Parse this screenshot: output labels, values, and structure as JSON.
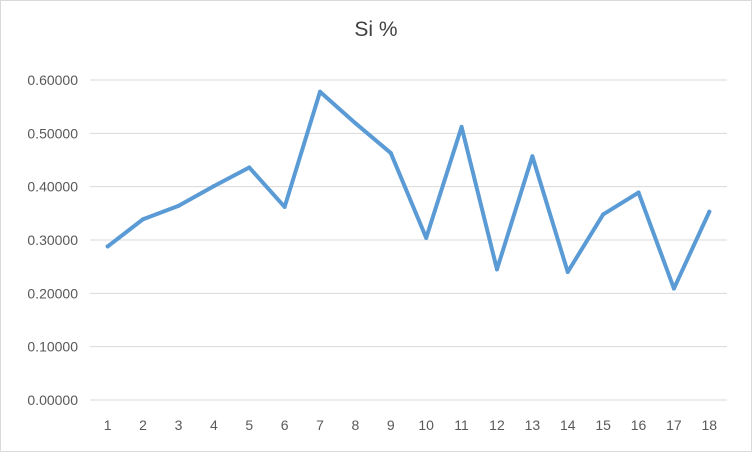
{
  "chart_data": {
    "type": "line",
    "title": "Si %",
    "xlabel": "",
    "ylabel": "",
    "categories": [
      "1",
      "2",
      "3",
      "4",
      "5",
      "6",
      "7",
      "8",
      "9",
      "10",
      "11",
      "12",
      "13",
      "14",
      "15",
      "16",
      "17",
      "18"
    ],
    "series": [
      {
        "values": [
          0.288,
          0.339,
          0.364,
          0.401,
          0.436,
          0.362,
          0.578,
          0.519,
          0.463,
          0.304,
          0.512,
          0.245,
          0.457,
          0.24,
          0.348,
          0.389,
          0.209,
          0.353
        ]
      }
    ],
    "ylim": [
      0,
      0.6
    ],
    "yticks": [
      0,
      0.1,
      0.2,
      0.3,
      0.4,
      0.5,
      0.6
    ],
    "ytick_labels": [
      "0.00000",
      "0.10000",
      "0.20000",
      "0.30000",
      "0.40000",
      "0.50000",
      "0.60000"
    ],
    "grid": true,
    "legend": "none",
    "colors": {
      "line": "#5b9bd5",
      "grid": "#d9d9d9",
      "text": "#595959"
    }
  }
}
